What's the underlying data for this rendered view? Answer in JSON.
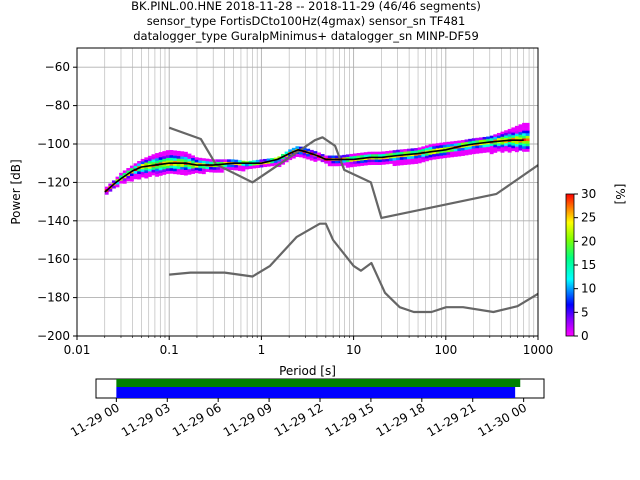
{
  "chart_data": [
    {
      "type": "heatmap",
      "title_lines": [
        "BK.PINL.00.HNE   2018-11-28 -- 2018-11-29  (46/46 segments)",
        "sensor_type FortisDCto100Hz(4gmax) sensor_sn TF481",
        "datalogger_type GuralpMinimus+ datalogger_sn MINP-DF59"
      ],
      "xlabel": "Period [s]",
      "ylabel": "Power [dB]",
      "x_scale": "log",
      "xlim": [
        0.01,
        1000
      ],
      "ylim": [
        -200,
        -50
      ],
      "x_ticks": [
        0.01,
        0.1,
        1,
        10,
        100,
        1000
      ],
      "x_tick_labels": [
        "0.01",
        "0.1",
        "1",
        "10",
        "100",
        "1000"
      ],
      "y_ticks": [
        -200,
        -180,
        -160,
        -140,
        -120,
        -100,
        -80,
        -60
      ],
      "y_tick_labels": [
        "−200",
        "−180",
        "−160",
        "−140",
        "−120",
        "−100",
        "−80",
        "−60"
      ],
      "grid": true,
      "colorbar": {
        "label": "[%]",
        "range": [
          0,
          30
        ],
        "ticks": [
          0,
          5,
          10,
          15,
          20,
          25,
          30
        ],
        "tick_labels": [
          "0",
          "5",
          "10",
          "15",
          "20",
          "25",
          "30"
        ]
      },
      "psd_distribution": {
        "period": [
          0.02,
          0.025,
          0.03,
          0.04,
          0.05,
          0.07,
          0.1,
          0.15,
          0.2,
          0.3,
          0.5,
          0.7,
          1,
          1.5,
          2,
          2.5,
          3,
          4,
          5,
          7,
          10,
          15,
          20,
          30,
          50,
          70,
          100,
          150,
          200,
          300,
          500,
          700
        ],
        "band_top_db": [
          -123,
          -119,
          -115,
          -111,
          -108,
          -105,
          -103,
          -104,
          -107,
          -108,
          -108,
          -109,
          -108,
          -107,
          -103,
          -101,
          -102,
          -104,
          -106,
          -106,
          -105,
          -104,
          -104,
          -103,
          -102,
          -100,
          -99,
          -98,
          -97,
          -96,
          -92,
          -89
        ],
        "band_bottom_db": [
          -127,
          -123,
          -120,
          -118,
          -117,
          -116,
          -115,
          -115,
          -115,
          -114,
          -113,
          -113,
          -112,
          -111,
          -108,
          -106,
          -107,
          -108,
          -110,
          -111,
          -111,
          -110,
          -110,
          -110,
          -109,
          -108,
          -106,
          -105,
          -104,
          -104,
          -103,
          -103
        ]
      },
      "mode_line": {
        "period": [
          0.02,
          0.025,
          0.03,
          0.04,
          0.05,
          0.07,
          0.1,
          0.15,
          0.2,
          0.3,
          0.5,
          0.7,
          1,
          1.5,
          2,
          2.5,
          3,
          4,
          5,
          7,
          10,
          15,
          20,
          30,
          50,
          70,
          100,
          150,
          200,
          300,
          500,
          700
        ],
        "power_db": [
          -125,
          -121,
          -118,
          -114,
          -112,
          -111,
          -110,
          -110,
          -111,
          -111,
          -110,
          -110,
          -110,
          -108,
          -105,
          -103,
          -104,
          -106,
          -108,
          -108,
          -108,
          -107,
          -107,
          -106,
          -105,
          -104,
          -103,
          -101,
          -100,
          -99,
          -98,
          -98
        ]
      },
      "series": [
        {
          "role": "high_noise_model",
          "period": [
            0.1,
            0.22,
            0.32,
            0.8,
            3.8,
            4.6,
            6.3,
            7.9,
            15.4,
            20,
            354.8,
            1000
          ],
          "power_db": [
            -91.5,
            -97.4,
            -110.5,
            -120,
            -98,
            -96.5,
            -101,
            -113.5,
            -120,
            -138.5,
            -126,
            -111
          ]
        },
        {
          "role": "low_noise_model",
          "period": [
            0.1,
            0.17,
            0.4,
            0.8,
            1.24,
            2.4,
            4.3,
            5,
            6,
            10,
            12,
            15.6,
            21.9,
            31.6,
            45,
            70,
            101,
            154,
            328,
            600,
            1000
          ],
          "power_db": [
            -168,
            -167,
            -167,
            -169,
            -163.5,
            -148.5,
            -141.5,
            -141.5,
            -150,
            -163.5,
            -166,
            -162,
            -177.5,
            -185,
            -187.5,
            -187.5,
            -185,
            -185,
            -187.5,
            -184.5,
            -178
          ]
        }
      ]
    },
    {
      "type": "timeline",
      "x_tick_labels": [
        "11-29 00",
        "11-29 03",
        "11-29 06",
        "11-29 09",
        "11-29 12",
        "11-29 15",
        "11-29 18",
        "11-29 21",
        "11-30 00"
      ],
      "x_ticks_hours": [
        0,
        3,
        6,
        9,
        12,
        15,
        18,
        21,
        24
      ],
      "xlim_hours": [
        -1.2,
        25.2
      ],
      "data_coverage_hours": [
        0,
        23.8
      ],
      "psd_coverage_hours": [
        0,
        23.5
      ],
      "colors": {
        "data": "#008000",
        "psd": "#0000ff"
      }
    }
  ]
}
